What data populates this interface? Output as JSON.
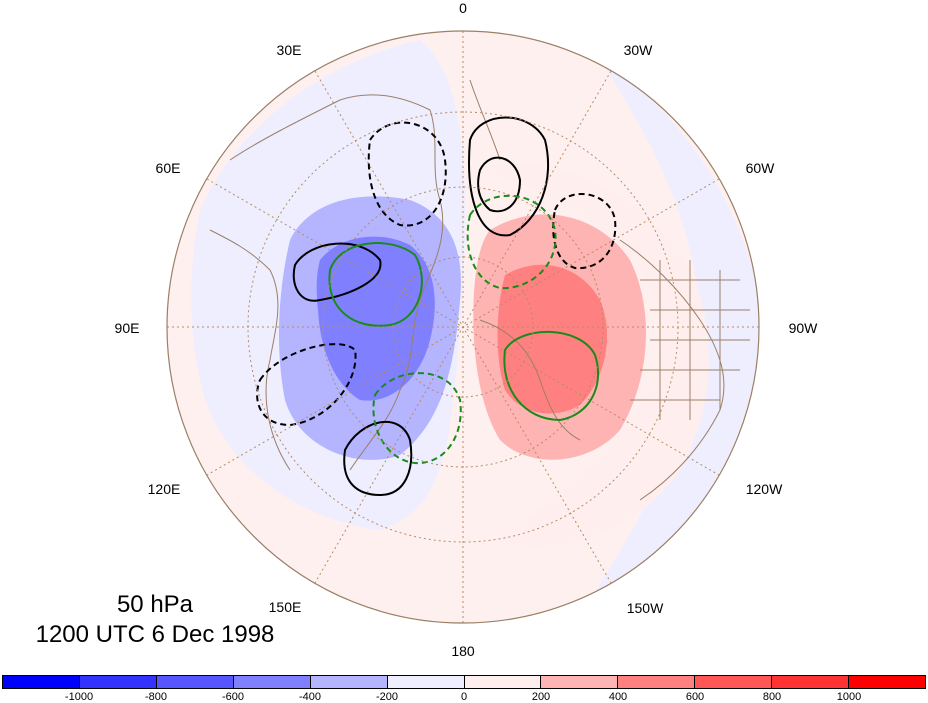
{
  "map": {
    "projection": "north polar stereographic",
    "longitude_labels": [
      {
        "text": "0"
      },
      {
        "text": "30W"
      },
      {
        "text": "60W"
      },
      {
        "text": "90W"
      },
      {
        "text": "120W"
      },
      {
        "text": "150W"
      },
      {
        "text": "180"
      },
      {
        "text": "150E"
      },
      {
        "text": "120E"
      },
      {
        "text": "90E"
      },
      {
        "text": "60E"
      },
      {
        "text": "30E"
      }
    ],
    "grid_lines": "dotted",
    "contours": {
      "solid_black": "positive",
      "dashed_black": "negative",
      "solid_green": "positive",
      "dashed_green": "negative"
    }
  },
  "title": {
    "level": "50 hPa",
    "valid_time": "1200 UTC 6 Dec 1998"
  },
  "colorbar": {
    "colors": [
      "#0000ff",
      "#3333ff",
      "#5656ff",
      "#8080ff",
      "#b4b4ff",
      "#eeeeff",
      "#ffeeee",
      "#ffb4b4",
      "#ff8080",
      "#ff5656",
      "#ff3333",
      "#ff0000"
    ],
    "ticks": [
      "-1000",
      "-800",
      "-600",
      "-400",
      "-200",
      "0",
      "200",
      "400",
      "600",
      "800",
      "1000"
    ]
  }
}
